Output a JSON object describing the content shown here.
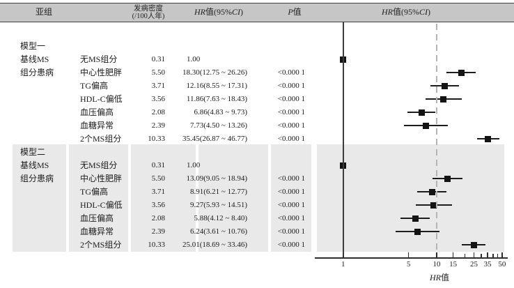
{
  "header": {
    "subgroup": "亚组",
    "density_line1": "发病密度",
    "density_line2": "(/100人年)",
    "hr_ci": "HR值(95%CI)",
    "p_value": "P值",
    "plot_hr_ci": "HR值(95%CI)"
  },
  "colors": {
    "header_bg": "#c6c6c6",
    "band_bg": "#e9e9e9",
    "marker": "#141414",
    "ci_line": "#1c1c1c",
    "solid_ref": "#3c3c3c",
    "dashed_ref": "#b4b4b4",
    "axis": "#2e2e2e",
    "text": "#1a1a1a"
  },
  "chart_data": {
    "type": "forest",
    "title": "",
    "x_axis": {
      "label": "HR值",
      "scale": "log10",
      "range": [
        1,
        50
      ],
      "ticks": [
        1,
        5,
        10,
        15,
        20,
        25,
        30,
        35,
        40,
        45,
        50
      ],
      "labeled_ticks": [
        1,
        5,
        10,
        15,
        25,
        35,
        50
      ]
    },
    "reference_lines": [
      {
        "value": 1,
        "style": "solid"
      },
      {
        "value": 10,
        "style": "dashed"
      }
    ],
    "groups": [
      {
        "model": "模型一",
        "row_label_lines": [
          "基线MS",
          "组分患病"
        ],
        "shaded": false,
        "rows": [
          {
            "subgroup": "无MS组分",
            "density": "0.31",
            "hr_text": "1.00",
            "p": "",
            "hr": 1.0,
            "ci_low": null,
            "ci_high": null
          },
          {
            "subgroup": "中心性肥胖",
            "density": "5.50",
            "hr_text": "18.30(12.75 ~ 26.26)",
            "p": "<0.000 1",
            "hr": 18.3,
            "ci_low": 12.75,
            "ci_high": 26.26
          },
          {
            "subgroup": "TG偏高",
            "density": "3.71",
            "hr_text": "12.16(8.55 ~ 17.31)",
            "p": "<0.000 1",
            "hr": 12.16,
            "ci_low": 8.55,
            "ci_high": 17.31
          },
          {
            "subgroup": "HDL-C偏低",
            "density": "3.56",
            "hr_text": "11.86(7.63 ~ 18.43)",
            "p": "<0.000 1",
            "hr": 11.86,
            "ci_low": 7.63,
            "ci_high": 18.43
          },
          {
            "subgroup": "血压偏高",
            "density": "2.08",
            "hr_text": "6.86(4.83 ~ 9.73)",
            "p": "<0.000 1",
            "hr": 6.86,
            "ci_low": 4.83,
            "ci_high": 9.73
          },
          {
            "subgroup": "血糖异常",
            "density": "2.39",
            "hr_text": "7.73(4.50 ~ 13.26)",
            "p": "<0.000 1",
            "hr": 7.73,
            "ci_low": 4.5,
            "ci_high": 13.26
          },
          {
            "subgroup": "2个MS组分",
            "density": "10.33",
            "hr_text": "35.45(26.87 ~ 46.77)",
            "p": "<0.000 1",
            "hr": 35.45,
            "ci_low": 26.87,
            "ci_high": 46.77
          }
        ]
      },
      {
        "model": "模型二",
        "row_label_lines": [
          "基线MS",
          "组分患病"
        ],
        "shaded": true,
        "rows": [
          {
            "subgroup": "无MS组分",
            "density": "0.31",
            "hr_text": "1.00",
            "p": "",
            "hr": 1.0,
            "ci_low": null,
            "ci_high": null
          },
          {
            "subgroup": "中心性肥胖",
            "density": "5.50",
            "hr_text": "13.09(9.05 ~ 18.94)",
            "p": "<0.000 1",
            "hr": 13.09,
            "ci_low": 9.05,
            "ci_high": 18.94
          },
          {
            "subgroup": "TG偏高",
            "density": "3.71",
            "hr_text": "8.91(6.21 ~ 12.77)",
            "p": "<0.000 1",
            "hr": 8.91,
            "ci_low": 6.21,
            "ci_high": 12.77
          },
          {
            "subgroup": "HDL-C偏低",
            "density": "3.56",
            "hr_text": "9.27(5.93 ~ 14.51)",
            "p": "<0.000 1",
            "hr": 9.27,
            "ci_low": 5.93,
            "ci_high": 14.51
          },
          {
            "subgroup": "血压偏高",
            "density": "2.08",
            "hr_text": "5.88(4.12 ~ 8.40)",
            "p": "<0.000 1",
            "hr": 5.88,
            "ci_low": 4.12,
            "ci_high": 8.4
          },
          {
            "subgroup": "血糖异常",
            "density": "2.39",
            "hr_text": "6.24(3.61 ~ 10.76)",
            "p": "<0.000 1",
            "hr": 6.24,
            "ci_low": 3.61,
            "ci_high": 10.76
          },
          {
            "subgroup": "2个MS组分",
            "density": "10.33",
            "hr_text": "25.01(18.69 ~ 33.46)",
            "p": "<0.000 1",
            "hr": 25.01,
            "ci_low": 18.69,
            "ci_high": 33.46
          }
        ]
      }
    ]
  }
}
